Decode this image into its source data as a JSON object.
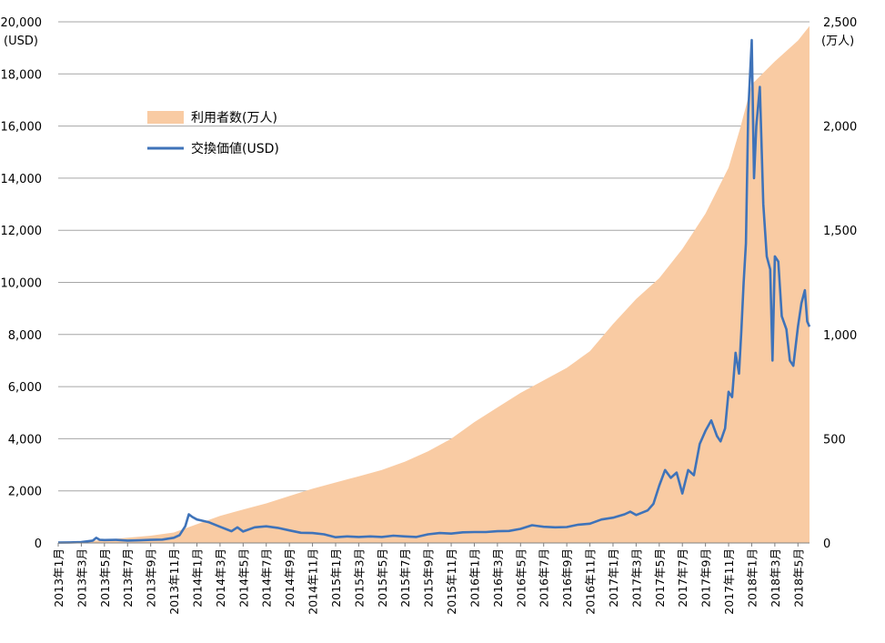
{
  "chart_data": {
    "type": "area",
    "title": "",
    "left_axis": {
      "unit": "(USD)",
      "ylim": [
        0,
        20000
      ],
      "ticks": [
        0,
        2000,
        4000,
        6000,
        8000,
        10000,
        12000,
        14000,
        16000,
        18000,
        20000
      ],
      "tick_labels": [
        "0",
        "2,000",
        "4,000",
        "6,000",
        "8,000",
        "10,000",
        "12,000",
        "14,000",
        "16,000",
        "18,000",
        "20,000"
      ]
    },
    "right_axis": {
      "unit": "(万人)",
      "ylim": [
        0,
        2500
      ],
      "ticks": [
        0,
        500,
        1000,
        1500,
        2000,
        2500
      ],
      "tick_labels": [
        "0",
        "500",
        "1,000",
        "1,500",
        "2,000",
        "2,500"
      ]
    },
    "grid": true,
    "legend_position": "upper-left",
    "categories": [
      "2013年1月",
      "2013年3月",
      "2013年5月",
      "2013年7月",
      "2013年9月",
      "2013年11月",
      "2014年1月",
      "2014年3月",
      "2014年5月",
      "2014年7月",
      "2014年9月",
      "2014年11月",
      "2015年1月",
      "2015年3月",
      "2015年5月",
      "2015年7月",
      "2015年9月",
      "2015年11月",
      "2016年1月",
      "2016年3月",
      "2016年5月",
      "2016年7月",
      "2016年9月",
      "2016年11月",
      "2017年1月",
      "2017年3月",
      "2017年5月",
      "2017年7月",
      "2017年9月",
      "2017年11月",
      "2018年1月",
      "2018年3月",
      "2018年5月"
    ],
    "series": [
      {
        "name": "利用者数(万人)",
        "type": "area",
        "axis": "right",
        "color": "#f9cba3",
        "x": [
          0,
          2,
          4,
          6,
          8,
          10,
          12,
          14,
          16,
          18,
          20,
          22,
          24,
          26,
          28,
          30,
          32,
          34,
          36,
          38,
          40,
          42,
          44,
          46,
          48,
          50,
          52,
          54,
          56,
          58,
          59,
          60,
          62,
          64,
          65
        ],
        "values": [
          2,
          6,
          15,
          25,
          35,
          50,
          90,
          130,
          160,
          190,
          225,
          260,
          290,
          320,
          350,
          390,
          440,
          500,
          580,
          650,
          720,
          780,
          840,
          920,
          1050,
          1170,
          1270,
          1410,
          1580,
          1800,
          1990,
          2200,
          2310,
          2410,
          2480
        ]
      },
      {
        "name": "交換価値(USD)",
        "type": "line",
        "axis": "left",
        "color": "#3f73b9",
        "x": [
          0,
          1,
          2,
          3,
          3.3,
          3.6,
          4,
          5,
          6,
          7,
          8,
          9,
          10,
          10.5,
          11,
          11.3,
          11.6,
          12,
          12.5,
          13,
          14,
          15,
          15.5,
          16,
          17,
          18,
          19,
          20,
          21,
          22,
          23,
          24,
          25,
          26,
          27,
          28,
          29,
          30,
          31,
          32,
          33,
          34,
          35,
          36,
          37,
          38,
          39,
          40,
          41,
          41.5,
          42,
          43,
          44,
          45,
          46,
          47,
          48,
          49,
          49.5,
          50,
          51,
          51.5,
          52,
          52.5,
          53,
          53.5,
          54,
          54.5,
          55,
          55.5,
          56,
          56.5,
          57,
          57.3,
          57.7,
          58,
          58.3,
          58.6,
          58.9,
          59.1,
          59.3,
          59.5,
          59.7,
          60,
          60.2,
          60.4,
          60.7,
          61,
          61.3,
          61.6,
          61.8,
          62,
          62.3,
          62.6,
          63,
          63.3,
          63.6,
          64,
          64.3,
          64.6,
          64.8,
          65
        ],
        "values": [
          13,
          20,
          30,
          90,
          200,
          120,
          110,
          120,
          90,
          100,
          120,
          130,
          200,
          300,
          650,
          1100,
          1000,
          900,
          850,
          800,
          620,
          450,
          600,
          440,
          600,
          640,
          580,
          480,
          390,
          380,
          330,
          220,
          250,
          230,
          250,
          230,
          280,
          250,
          230,
          330,
          380,
          360,
          410,
          420,
          420,
          450,
          460,
          540,
          680,
          650,
          620,
          600,
          610,
          700,
          740,
          900,
          970,
          1100,
          1200,
          1070,
          1250,
          1500,
          2200,
          2800,
          2500,
          2700,
          1900,
          2800,
          2600,
          3800,
          4300,
          4700,
          4100,
          3900,
          4400,
          5800,
          5600,
          7300,
          6500,
          8100,
          10000,
          11500,
          16500,
          19300,
          14000,
          16000,
          17500,
          13000,
          11000,
          10500,
          7000,
          11000,
          10800,
          8700,
          8200,
          7000,
          6800,
          8300,
          9200,
          9700,
          8500,
          8300
        ]
      }
    ]
  }
}
